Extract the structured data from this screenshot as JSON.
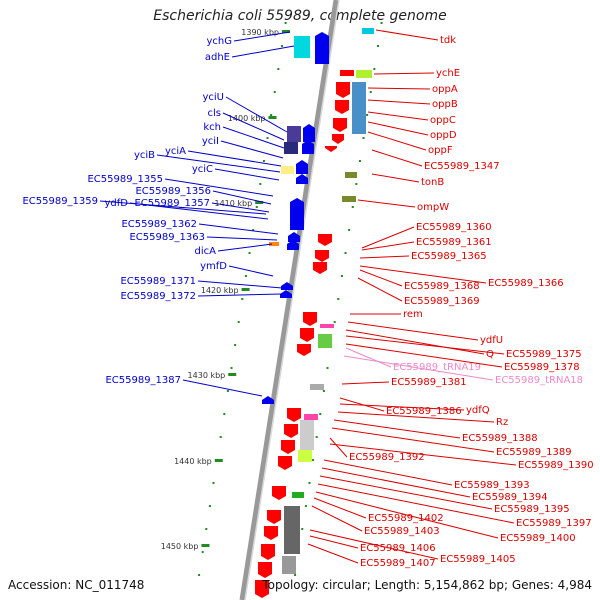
{
  "title": "Escherichia coli 55989, complete genome",
  "footer": {
    "accession": "Accession: NC_011748",
    "topology": "Topology: circular; Length: 5,154,862 bp; Genes: 4,984"
  },
  "colors": {
    "left_label": "#0000cc",
    "right_label": "#dd0000",
    "trna_label": "#ee88cc",
    "backbone": "#888888",
    "tick": "#228b22"
  },
  "kbp_labels": [
    "1390 kbp",
    "1400 kbp",
    "1410 kbp",
    "1420 kbp",
    "1430 kbp",
    "1440 kbp",
    "1450 kbp"
  ],
  "left_labels": [
    "ychG",
    "adhE",
    "yciU",
    "cls",
    "kch",
    "yciI",
    "yciA",
    "yciB",
    "yciC",
    "EC55989_1355",
    "EC55989_1356",
    "EC55989_1359",
    "ydfD",
    "EC55989_1357",
    "EC55989_1362",
    "EC55989_1363",
    "dicA",
    "ymfD",
    "EC55989_1371",
    "EC55989_1372",
    "EC55989_1387"
  ],
  "right_labels": [
    "tdk",
    "ychE",
    "oppA",
    "oppB",
    "oppC",
    "oppD",
    "oppF",
    "EC55989_1347",
    "tonB",
    "ompW",
    "EC55989_1360",
    "EC55989_1361",
    "EC55989_1365",
    "EC55989_1366",
    "EC55989_1368",
    "EC55989_1369",
    "rem",
    "ydfU",
    "Q",
    "EC55989_1375",
    "EC55989_tRNA19",
    "EC55989_1378",
    "EC55989_tRNA18",
    "EC55989_1381",
    "EC55989_1386",
    "ydfQ",
    "Rz",
    "EC55989_1388",
    "EC55989_1389",
    "EC55989_1392",
    "EC55989_1390",
    "EC55989_1393",
    "EC55989_1394",
    "EC55989_1395",
    "EC55989_1397",
    "EC55989_1402",
    "EC55989_1403",
    "EC55989_1400",
    "EC55989_1406",
    "EC55989_1405",
    "EC55989_1407"
  ]
}
